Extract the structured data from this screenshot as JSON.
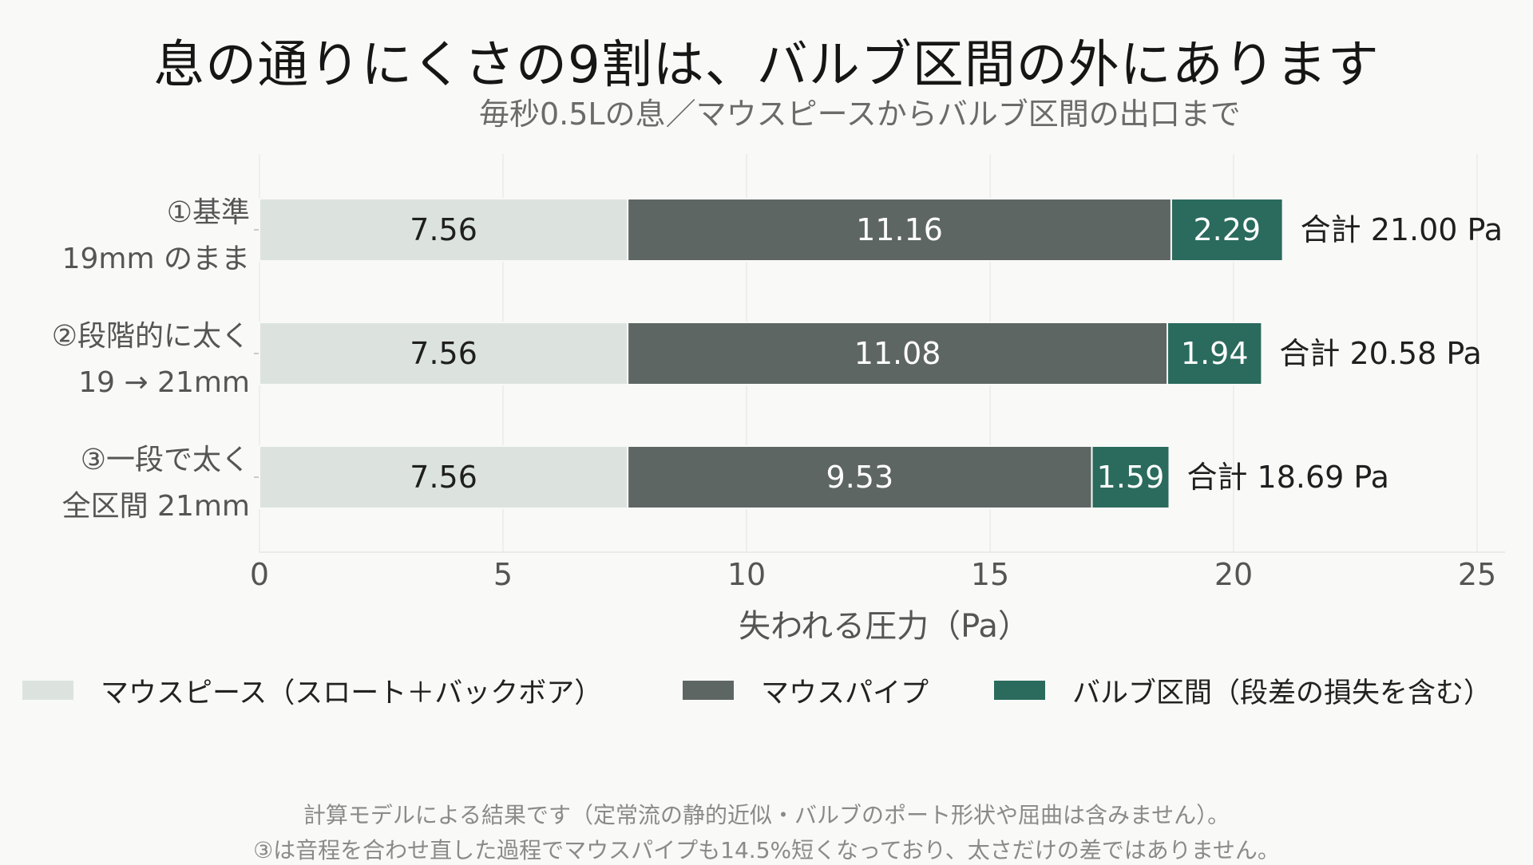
{
  "title": "息の通りにくさの9割は、バルブ区間の外にあります",
  "subtitle": "毎秒0.5Lの息／マウスピースからバルブ区間の出口まで",
  "footnotes": [
    "計算モデルによる結果です（定常流の静的近似・バルブのポート形状や屈曲は含みません）。",
    "③は音程を合わせ直した過程でマウスパイプも14.5%短くなっており、太さだけの差ではありません。"
  ],
  "chart_data": {
    "type": "bar",
    "orientation": "horizontal",
    "stacked": true,
    "categories": [
      [
        "①基準",
        "19mm のまま"
      ],
      [
        "②段階的に太く",
        "19 → 21mm"
      ],
      [
        "③一段で太く",
        "全区間 21mm"
      ]
    ],
    "series": [
      {
        "name": "マウスピース（スロート＋バックボア）",
        "values": [
          7.56,
          7.56,
          7.56
        ],
        "color": "#dce3df",
        "label_color": "#1f1f1f"
      },
      {
        "name": "マウスパイプ",
        "values": [
          11.16,
          11.08,
          9.53
        ],
        "color": "#5e6664",
        "label_color": "#ffffff"
      },
      {
        "name": "バルブ区間（段差の損失を含む）",
        "values": [
          2.29,
          1.94,
          1.59
        ],
        "color": "#2a6b5d",
        "label_color": "#ffffff"
      }
    ],
    "totals": [
      "合計 21.00 Pa",
      "合計 20.58 Pa",
      "合計 18.69 Pa"
    ],
    "value_labels": [
      [
        "7.56",
        "11.16",
        "2.29"
      ],
      [
        "7.56",
        "11.08",
        "1.94"
      ],
      [
        "7.56",
        "9.53",
        "1.59"
      ]
    ],
    "xlabel": "失われる圧力（Pa）",
    "xlim": [
      0,
      25
    ],
    "xticks": [
      0,
      5,
      10,
      15,
      20,
      25
    ],
    "grid": true,
    "legend_position": "bottom"
  }
}
